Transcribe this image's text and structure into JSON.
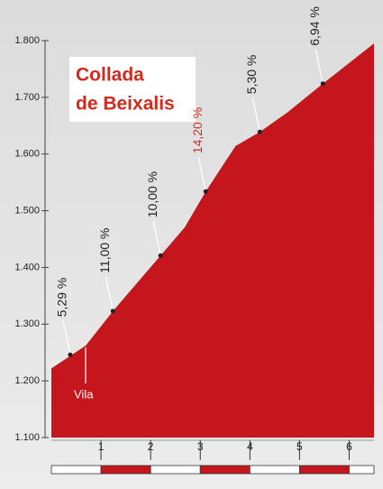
{
  "chart_data": {
    "type": "area",
    "title_lines": [
      "Collada",
      "de Beixalis"
    ],
    "x": [
      0,
      0.69,
      1.24,
      2.2,
      2.69,
      3.11,
      3.71,
      4.2,
      4.75,
      5.47,
      6.5
    ],
    "values": [
      1222,
      1262,
      1323,
      1421,
      1471,
      1534,
      1614,
      1639,
      1673,
      1724,
      1795
    ],
    "color": "#c4161c",
    "xlim": [
      0,
      6.5
    ],
    "xticks": [
      1,
      2,
      3,
      4,
      5,
      6
    ],
    "ylim": [
      1100,
      1800
    ],
    "yticks": [
      {
        "value": 1100,
        "label": "1.100"
      },
      {
        "value": 1200,
        "label": "1.200"
      },
      {
        "value": 1300,
        "label": "1.300"
      },
      {
        "value": 1400,
        "label": "1.400"
      },
      {
        "value": 1500,
        "label": "1.500"
      },
      {
        "value": 1600,
        "label": "1.600"
      },
      {
        "value": 1700,
        "label": "1.700"
      },
      {
        "value": 1800,
        "label": "1.800"
      }
    ],
    "annotations": [
      {
        "x": 0.38,
        "y": 1246,
        "text": "5,29 %",
        "color": "#222222"
      },
      {
        "x": 1.24,
        "y": 1323,
        "text": "11,00 %",
        "color": "#222222"
      },
      {
        "x": 2.2,
        "y": 1421,
        "text": "10,00 %",
        "color": "#222222"
      },
      {
        "x": 3.11,
        "y": 1534,
        "text": "14,20 %",
        "color": "#d42a1e"
      },
      {
        "x": 4.2,
        "y": 1639,
        "text": "5,30 %",
        "color": "#222222"
      },
      {
        "x": 5.47,
        "y": 1724,
        "text": "6,94 %",
        "color": "#222222"
      }
    ],
    "markers": [
      {
        "x": 0.69,
        "text": "Vila"
      }
    ]
  }
}
